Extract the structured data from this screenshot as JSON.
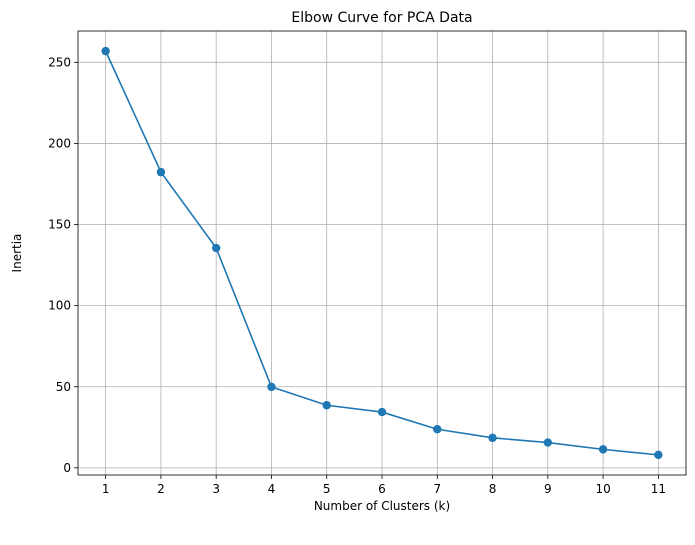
{
  "chart_data": {
    "type": "line",
    "title": "Elbow Curve for PCA Data",
    "xlabel": "Number of Clusters (k)",
    "ylabel": "Inertia",
    "x": [
      1,
      2,
      3,
      4,
      5,
      6,
      7,
      8,
      9,
      10,
      11
    ],
    "series": [
      {
        "values": [
          256.9,
          182.3,
          135.5,
          49.9,
          38.6,
          34.4,
          23.8,
          18.5,
          15.6,
          11.4,
          8.0
        ],
        "color": "#1f77b4",
        "marker": "circle"
      }
    ],
    "xticks": [
      "1",
      "2",
      "3",
      "4",
      "5",
      "6",
      "7",
      "8",
      "9",
      "10",
      "11"
    ],
    "yticks": [
      "0",
      "50",
      "100",
      "150",
      "200",
      "250"
    ],
    "xlim": [
      0.5,
      11.5
    ],
    "ylim": [
      -4.4,
      269.3
    ],
    "grid": true
  }
}
